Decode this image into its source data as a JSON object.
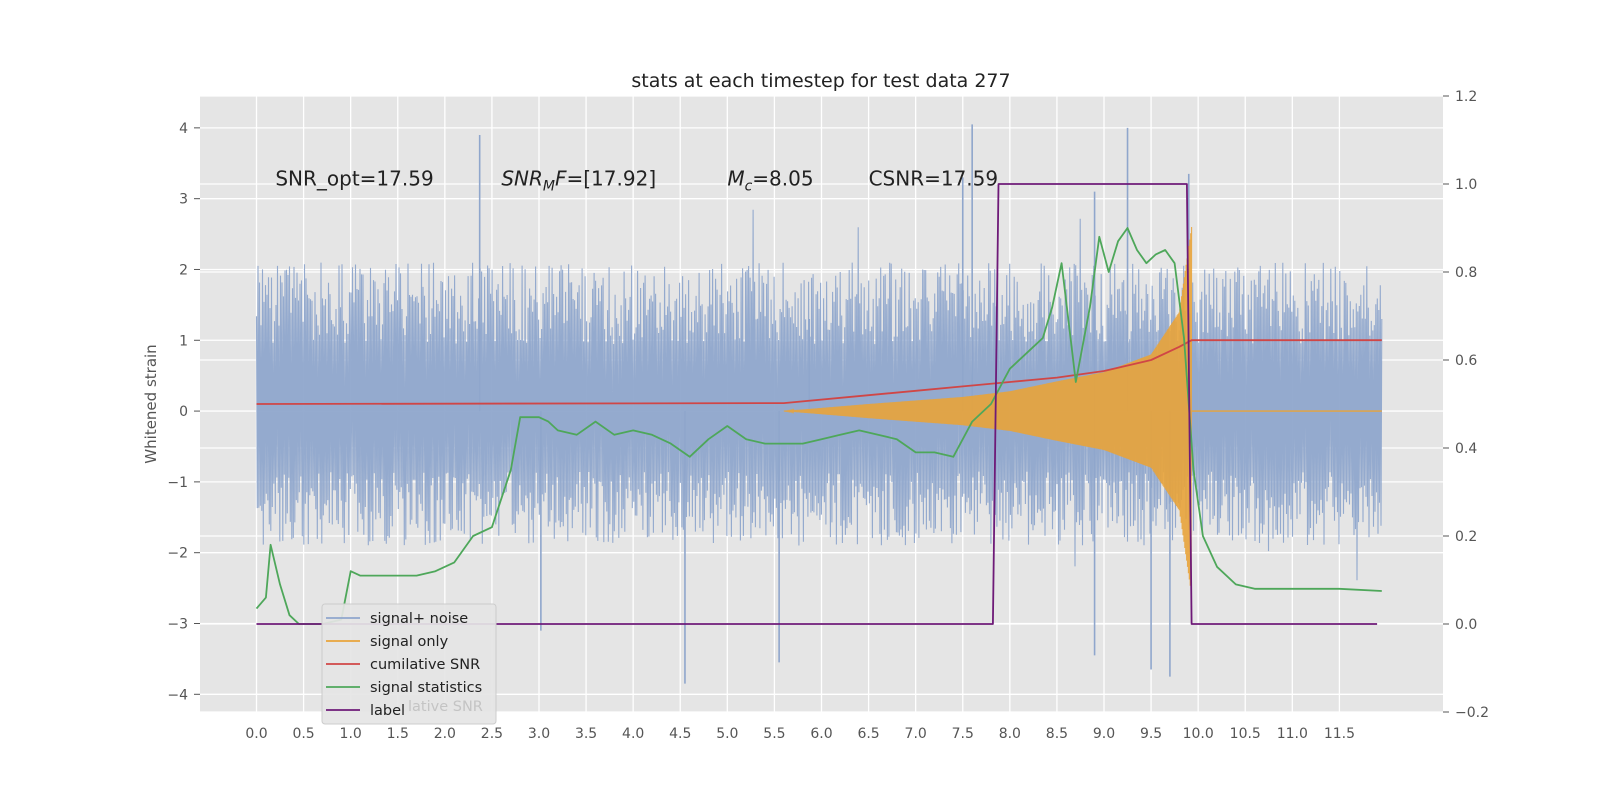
{
  "chart_data": {
    "type": "line",
    "title": "stats at each timestep for test data 277",
    "ylabel": "Whitened strain",
    "y2label": "",
    "xlim": [
      -0.6,
      12.6
    ],
    "ylim": [
      -4.25,
      4.45
    ],
    "y2lim": [
      -0.2,
      1.2
    ],
    "grid": true,
    "legend_position": "lower-left",
    "x_ticks": [
      0.0,
      0.5,
      1.0,
      1.5,
      2.0,
      2.5,
      3.0,
      3.5,
      4.0,
      4.5,
      5.0,
      5.5,
      6.0,
      6.5,
      7.0,
      7.5,
      8.0,
      8.5,
      9.0,
      9.5,
      10.0,
      10.5,
      11.0,
      11.5
    ],
    "x_tick_labels": [
      "0.0",
      "0.5",
      "1.0",
      "1.5",
      "2.0",
      "2.5",
      "3.0",
      "3.5",
      "4.0",
      "4.5",
      "5.0",
      "5.5",
      "6.0",
      "6.5",
      "7.0",
      "7.5",
      "8.0",
      "8.5",
      "9.0",
      "9.5",
      "10.0",
      "10.5",
      "11.0",
      "11.5"
    ],
    "y_ticks": [
      4,
      3,
      2,
      1,
      0,
      -1,
      -2,
      -3,
      -4
    ],
    "y_tick_labels": [
      "4",
      "3",
      "2",
      "1",
      "0",
      "−1",
      "−2",
      "−3",
      "−4"
    ],
    "y2_ticks": [
      1.2,
      1.0,
      0.8,
      0.6,
      0.4,
      0.2,
      0.0,
      -0.2
    ],
    "y2_tick_labels": [
      "1.2",
      "1.0",
      "0.8",
      "0.6",
      "0.4",
      "0.2",
      "0.0",
      "−0.2"
    ],
    "annotations": [
      {
        "text": "SNR_opt=17.59",
        "x": 0.2,
        "y": 3.3
      },
      {
        "text": "SNR",
        "sub": "M",
        "suffix": "F=[17.92]",
        "italic": true,
        "x": 2.6,
        "y": 3.3
      },
      {
        "text": "M",
        "sub": "c",
        "suffix": "=8.05",
        "italic": true,
        "x": 5.0,
        "y": 3.3
      },
      {
        "text": "CSNR=17.59",
        "x": 6.5,
        "y": 3.3
      }
    ],
    "series": [
      {
        "name": "signal+ noise",
        "axis": "left",
        "color": "#8fa6cc",
        "style": "noise",
        "x_range": [
          0.0,
          11.95
        ],
        "envelope_low": -1.9,
        "envelope_high": 2.1,
        "peaks": [
          [
            2.37,
            3.9
          ],
          [
            7.5,
            3.3
          ],
          [
            7.6,
            4.05
          ],
          [
            8.9,
            3.1
          ],
          [
            9.25,
            4.0
          ],
          [
            9.9,
            3.35
          ],
          [
            5.87,
            1.3
          ],
          [
            4.55,
            -3.85
          ],
          [
            9.7,
            -3.75
          ],
          [
            8.9,
            -3.45
          ],
          [
            9.5,
            -3.65
          ],
          [
            5.55,
            -3.55
          ],
          [
            3.02,
            -3.1
          ]
        ]
      },
      {
        "name": "signal only",
        "axis": "left",
        "color": "#e8a33a",
        "style": "chirp",
        "x": [
          5.6,
          6.5,
          7.5,
          8.0,
          8.5,
          9.0,
          9.5,
          9.8,
          9.93
        ],
        "amplitude": [
          0.0,
          0.1,
          0.2,
          0.28,
          0.42,
          0.55,
          0.8,
          1.4,
          2.6
        ]
      },
      {
        "name": "cumilative SNR",
        "axis": "right",
        "color": "#d04646",
        "x": [
          0.0,
          5.6,
          6.5,
          7.0,
          7.5,
          8.0,
          8.5,
          9.0,
          9.5,
          9.8,
          9.93,
          9.93,
          11.95
        ],
        "y": [
          0.5,
          0.502,
          0.52,
          0.53,
          0.54,
          0.55,
          0.56,
          0.575,
          0.6,
          0.63,
          0.645,
          0.645,
          0.645
        ]
      },
      {
        "name": "signal statistics",
        "axis": "right",
        "color": "#4ea75a",
        "x": [
          0.0,
          0.1,
          0.15,
          0.25,
          0.35,
          0.45,
          0.55,
          0.7,
          0.9,
          1.0,
          1.1,
          1.3,
          1.5,
          1.7,
          1.9,
          2.1,
          2.3,
          2.5,
          2.7,
          2.8,
          2.9,
          3.0,
          3.1,
          3.2,
          3.4,
          3.6,
          3.8,
          4.0,
          4.2,
          4.4,
          4.6,
          4.8,
          5.0,
          5.2,
          5.4,
          5.6,
          5.8,
          6.0,
          6.2,
          6.4,
          6.6,
          6.8,
          7.0,
          7.2,
          7.4,
          7.6,
          7.8,
          8.0,
          8.2,
          8.35,
          8.45,
          8.55,
          8.7,
          8.85,
          8.95,
          9.05,
          9.15,
          9.25,
          9.35,
          9.45,
          9.55,
          9.65,
          9.75,
          9.85,
          9.95,
          10.05,
          10.2,
          10.4,
          10.6,
          10.9,
          11.2,
          11.5,
          11.95
        ],
        "y": [
          0.035,
          0.06,
          0.18,
          0.09,
          0.02,
          0.0,
          0.0,
          0.0,
          0.01,
          0.12,
          0.11,
          0.11,
          0.11,
          0.11,
          0.12,
          0.14,
          0.2,
          0.22,
          0.35,
          0.47,
          0.47,
          0.47,
          0.46,
          0.44,
          0.43,
          0.46,
          0.43,
          0.44,
          0.43,
          0.41,
          0.38,
          0.42,
          0.45,
          0.42,
          0.41,
          0.41,
          0.41,
          0.42,
          0.43,
          0.44,
          0.43,
          0.42,
          0.39,
          0.39,
          0.38,
          0.46,
          0.5,
          0.58,
          0.62,
          0.65,
          0.72,
          0.82,
          0.55,
          0.72,
          0.88,
          0.8,
          0.87,
          0.9,
          0.85,
          0.82,
          0.84,
          0.85,
          0.82,
          0.65,
          0.35,
          0.2,
          0.13,
          0.09,
          0.08,
          0.08,
          0.08,
          0.08,
          0.075
        ]
      },
      {
        "name": "label",
        "axis": "right",
        "color": "#6e1a78",
        "x": [
          0.0,
          7.82,
          7.88,
          9.88,
          9.93,
          11.9
        ],
        "y": [
          0.0,
          0.0,
          1.0,
          1.0,
          0.0,
          0.0
        ]
      }
    ],
    "legend_entries": [
      "signal+ noise",
      "signal only",
      "cumilative SNR",
      "signal statistics",
      "label"
    ],
    "legend_ghost_text": "lative SNR"
  }
}
